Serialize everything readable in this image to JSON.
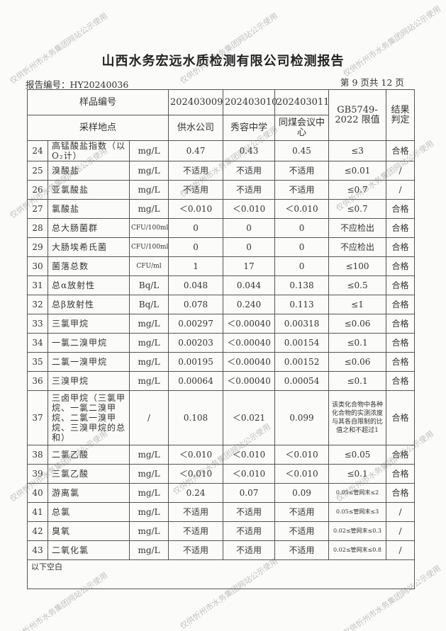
{
  "title": "山西水务宏远水质检测有限公司检测报告",
  "report_no": "报告编号：HY20240036",
  "page": "第 9 页共 12 页",
  "header": {
    "sample_no_label": "样品编号",
    "site_label": "采样地点",
    "samples": [
      "202403009",
      "202403010",
      "202403011"
    ],
    "sites": [
      "供水公司",
      "秀容中学",
      "同煤会议中心"
    ],
    "limit_label": "GB5749-2022 限值",
    "result_label": "结果判定"
  },
  "rows": [
    [
      "24",
      "高锰酸盐指数（以O₂计）",
      "mg/L",
      "0.47",
      "0.43",
      "0.45",
      "≤3",
      "合格"
    ],
    [
      "25",
      "溴酸盐",
      "mg/L",
      "不适用",
      "不适用",
      "不适用",
      "≤0.01",
      "/"
    ],
    [
      "26",
      "亚氯酸盐",
      "mg/L",
      "不适用",
      "不适用",
      "不适用",
      "≤0.7",
      "/"
    ],
    [
      "27",
      "氯酸盐",
      "mg/L",
      "＜0.010",
      "＜0.010",
      "＜0.010",
      "≤0.7",
      "合格"
    ],
    [
      "28",
      "总大肠菌群",
      "CFU/100ml",
      "0",
      "0",
      "0",
      "不应检出",
      "合格"
    ],
    [
      "29",
      "大肠埃希氏菌",
      "CFU/100ml",
      "0",
      "0",
      "0",
      "不应检出",
      "合格"
    ],
    [
      "30",
      "菌落总数",
      "CFU/ml",
      "1",
      "17",
      "0",
      "≤100",
      "合格"
    ],
    [
      "31",
      "总α放射性",
      "Bq/L",
      "0.048",
      "0.044",
      "0.138",
      "≤0.5",
      "合格"
    ],
    [
      "32",
      "总β放射性",
      "Bq/L",
      "0.078",
      "0.240",
      "0.113",
      "≤1",
      "合格"
    ],
    [
      "33",
      "三氯甲烷",
      "mg/L",
      "0.00297",
      "＜0.00040",
      "0.00318",
      "≤0.06",
      "合格"
    ],
    [
      "34",
      "一氯二溴甲烷",
      "mg/L",
      "0.00203",
      "＜0.00040",
      "0.00154",
      "≤0.1",
      "合格"
    ],
    [
      "35",
      "二氯一溴甲烷",
      "mg/L",
      "0.00195",
      "＜0.00040",
      "0.00152",
      "≤0.06",
      "合格"
    ],
    [
      "36",
      "三溴甲烷",
      "mg/L",
      "0.00064",
      "＜0.00040",
      "0.00054",
      "≤0.1",
      "合格"
    ],
    [
      "37",
      "三卤甲烷（三氯甲烷、一氯二溴甲烷、二氯一溴甲烷、三溴甲烷的总和）",
      "/",
      "0.108",
      "＜0.021",
      "0.099",
      "该类化合物中各种化合物的实测浓度与其各自限制的比值之和不超过1",
      "合格"
    ],
    [
      "38",
      "二氯乙酸",
      "mg/L",
      "＜0.010",
      "＜0.010",
      "＜0.010",
      "≤0.05",
      "合格"
    ],
    [
      "39",
      "三氯乙酸",
      "mg/L",
      "＜0.010",
      "＜0.010",
      "＜0.010",
      "≤0.1",
      "合格"
    ],
    [
      "40",
      "游离氯",
      "mg/L",
      "0.24",
      "0.07",
      "0.09",
      "0.05≤管网末≤2",
      "合格"
    ],
    [
      "41",
      "总氯",
      "mg/L",
      "不适用",
      "不适用",
      "不适用",
      "0.05≤管网末≤3",
      "/"
    ],
    [
      "42",
      "臭氧",
      "mg/L",
      "不适用",
      "不适用",
      "不适用",
      "0.02≤管网末≤0.3",
      "/"
    ],
    [
      "43",
      "二氧化氯",
      "mg/L",
      "不适用",
      "不适用",
      "不适用",
      "0.02≤管网末≤0.8",
      "/"
    ]
  ],
  "footer_note": "以下空白",
  "watermark": "仅供忻州市水务集团网站公示使用"
}
